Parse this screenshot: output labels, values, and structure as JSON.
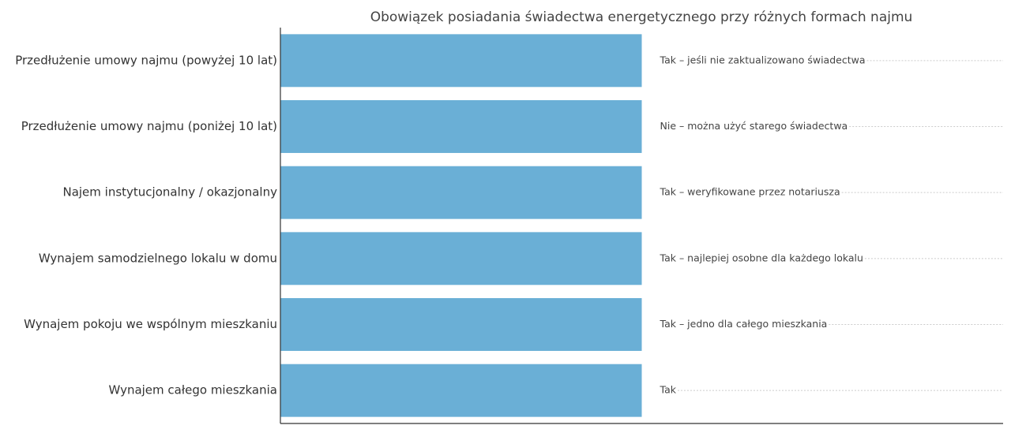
{
  "chart_data": {
    "type": "barh",
    "title": "Obowiązek posiadania świadectwa energetycznego przy różnych formach najmu",
    "categories": [
      "Przedłużenie umowy najmu (powyżej 10 lat)",
      "Przedłużenie umowy najmu (poniżej 10 lat)",
      "Najem instytucjonalny / okazjonalny",
      "Wynajem samodzielnego lokalu w domu",
      "Wynajem pokoju we wspólnym mieszkaniu",
      "Wynajem całego mieszkania"
    ],
    "values": [
      1,
      1,
      1,
      1,
      1,
      1
    ],
    "annotations": [
      "Tak – jeśli nie zaktualizowano świadectwa",
      "Nie – można użyć starego świadectwa",
      "Tak – weryfikowane przez notariusza",
      "Tak – najlepiej osobne dla każdego lokalu",
      "Tak – jedno dla całego mieszkania",
      "Tak"
    ],
    "color": "#6aafd6",
    "xlim": [
      0,
      2
    ]
  }
}
